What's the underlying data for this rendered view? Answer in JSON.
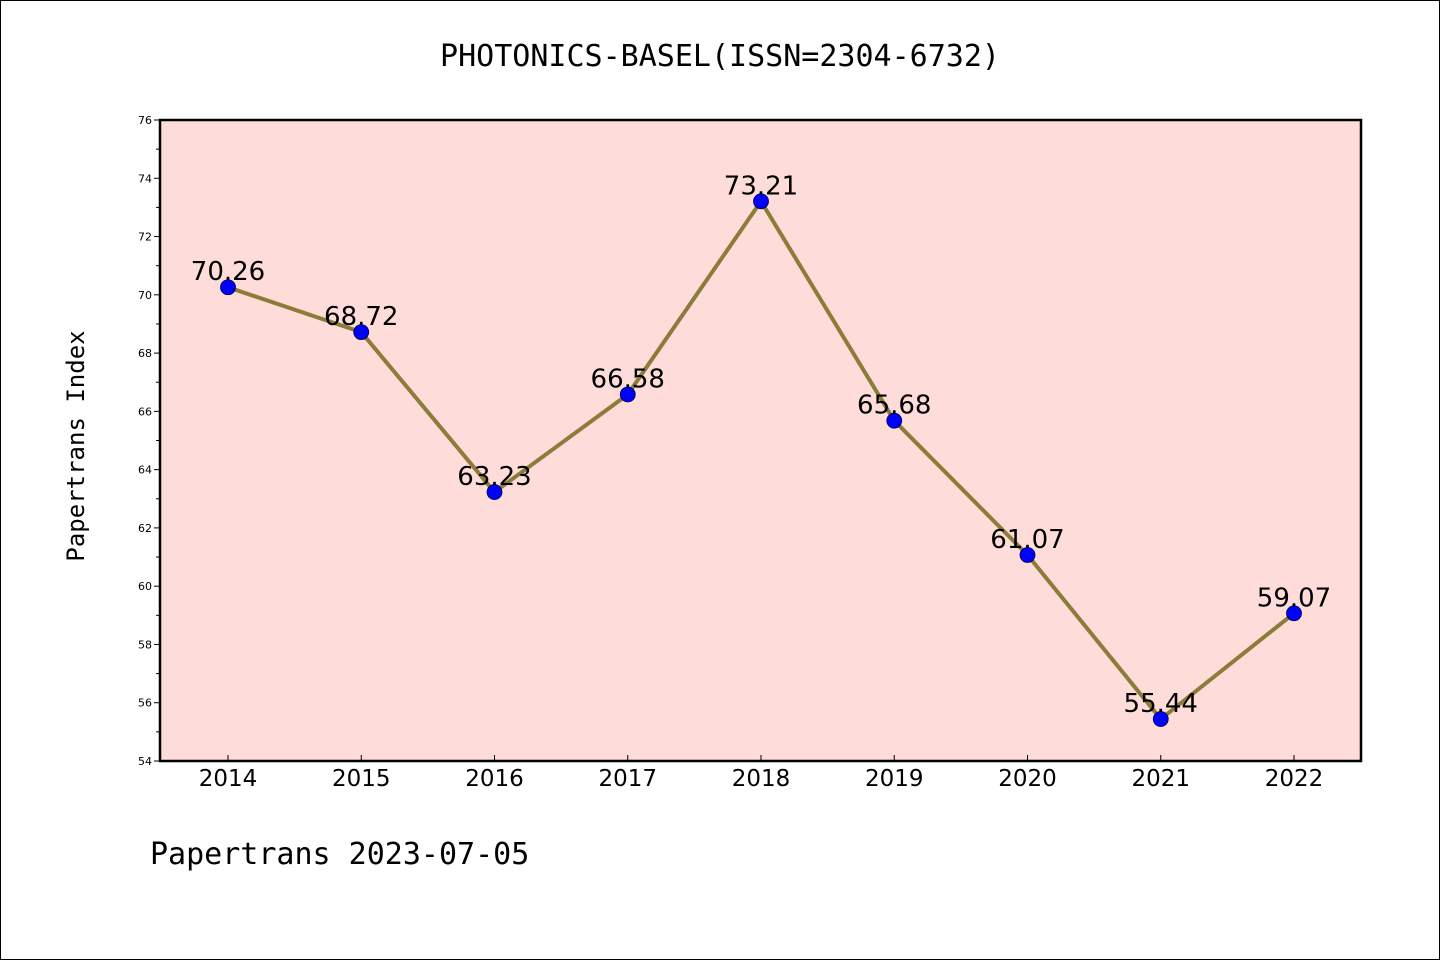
{
  "chart_data": {
    "type": "line",
    "title": "PHOTONICS-BASEL(ISSN=2304-6732)",
    "xlabel": "",
    "ylabel": "Papertrans Index",
    "footer": "Papertrans 2023-07-05",
    "categories": [
      "2014",
      "2015",
      "2016",
      "2017",
      "2018",
      "2019",
      "2020",
      "2021",
      "2022"
    ],
    "values": [
      70.26,
      68.72,
      63.23,
      66.58,
      73.21,
      65.68,
      61.07,
      55.44,
      59.07
    ],
    "value_labels": [
      "70.26",
      "68.72",
      "63.23",
      "66.58",
      "73.21",
      "65.68",
      "61.07",
      "55.44",
      "59.07"
    ],
    "ylim": [
      54,
      76
    ],
    "yticks": [
      "54",
      "56",
      "58",
      "60",
      "62",
      "64",
      "66",
      "68",
      "70",
      "72",
      "74",
      "76"
    ],
    "grid": false,
    "legend": "none",
    "colors": {
      "plot_background": "#fddcd9",
      "line": "#8b7c3a",
      "marker": "#0000ff"
    }
  }
}
